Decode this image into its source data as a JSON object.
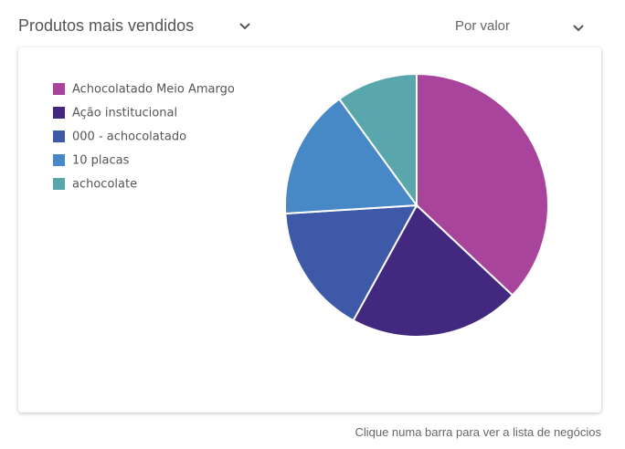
{
  "chart_data": {
    "type": "pie",
    "title": "Produtos mais vendidos",
    "dropdown": "Por valor",
    "categories": [
      "Achocolatado Meio Amargo",
      "Ação institucional",
      "000 - achocolatado",
      "10 placas",
      "achocolate"
    ],
    "values": [
      37,
      21,
      16,
      16,
      10
    ],
    "colors": [
      "#a8449b",
      "#42287e",
      "#3d59a8",
      "#4788c7",
      "#5aa6ad"
    ],
    "footer": "Clique numa barra para ver a lista de negócios"
  }
}
